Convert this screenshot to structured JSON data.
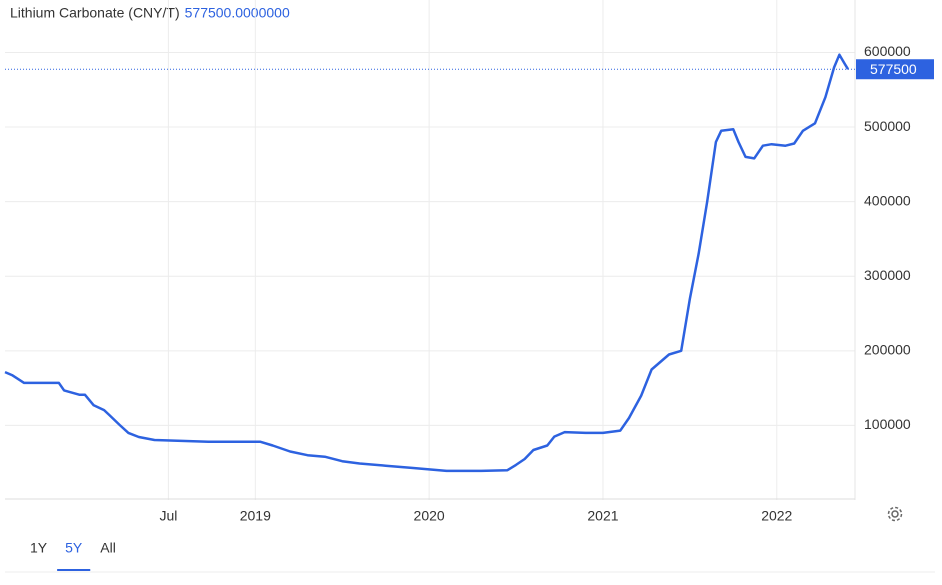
{
  "chart_data": {
    "type": "line",
    "title": "Lithium Carbonate (CNY/T)",
    "current_value": {
      "value": 577500,
      "label": "577500.0000000"
    },
    "color": "#2d62e0",
    "x": [
      2017.56,
      2017.6,
      2017.67,
      2017.87,
      2017.9,
      2017.99,
      2018.02,
      2018.07,
      2018.13,
      2018.16,
      2018.22,
      2018.27,
      2018.33,
      2018.42,
      2018.62,
      2018.73,
      2018.9,
      2019.03,
      2019.1,
      2019.2,
      2019.3,
      2019.4,
      2019.5,
      2019.6,
      2019.75,
      2019.9,
      2020.0,
      2020.1,
      2020.3,
      2020.45,
      2020.5,
      2020.55,
      2020.6,
      2020.68,
      2020.72,
      2020.78,
      2020.9,
      2021.0,
      2021.1,
      2021.15,
      2021.22,
      2021.28,
      2021.33,
      2021.38,
      2021.45,
      2021.5,
      2021.55,
      2021.6,
      2021.65,
      2021.68,
      2021.75,
      2021.78,
      2021.82,
      2021.87,
      2021.92,
      2021.97,
      2022.05,
      2022.1,
      2022.15,
      2022.22,
      2022.28,
      2022.33,
      2022.36,
      2022.39,
      2022.41
    ],
    "values": [
      171500,
      167500,
      157000,
      157000,
      147000,
      141000,
      141000,
      127000,
      120500,
      114000,
      100500,
      90000,
      84500,
      80500,
      79000,
      78000,
      78000,
      78000,
      73000,
      65000,
      60000,
      58000,
      52000,
      49000,
      46000,
      43000,
      41000,
      39000,
      39000,
      40000,
      47000,
      55000,
      67000,
      73000,
      85000,
      91000,
      90000,
      90000,
      93000,
      110000,
      140000,
      175000,
      185000,
      195000,
      200000,
      270000,
      330000,
      400000,
      480000,
      495000,
      497000,
      480000,
      460000,
      458000,
      475000,
      477000,
      475000,
      478000,
      495000,
      505000,
      540000,
      580000,
      597000,
      585000,
      577500
    ],
    "xlim": [
      2017.56,
      2022.45
    ],
    "xticks": [
      {
        "value": 2018.5,
        "label": "Jul"
      },
      2019,
      2020,
      2021,
      2022
    ],
    "ylim": [
      0,
      610000
    ],
    "yticks": [
      100000,
      200000,
      300000,
      400000,
      500000,
      600000
    ],
    "grid": true,
    "range_buttons": [
      "1Y",
      "5Y",
      "All"
    ],
    "active_range": 1
  }
}
